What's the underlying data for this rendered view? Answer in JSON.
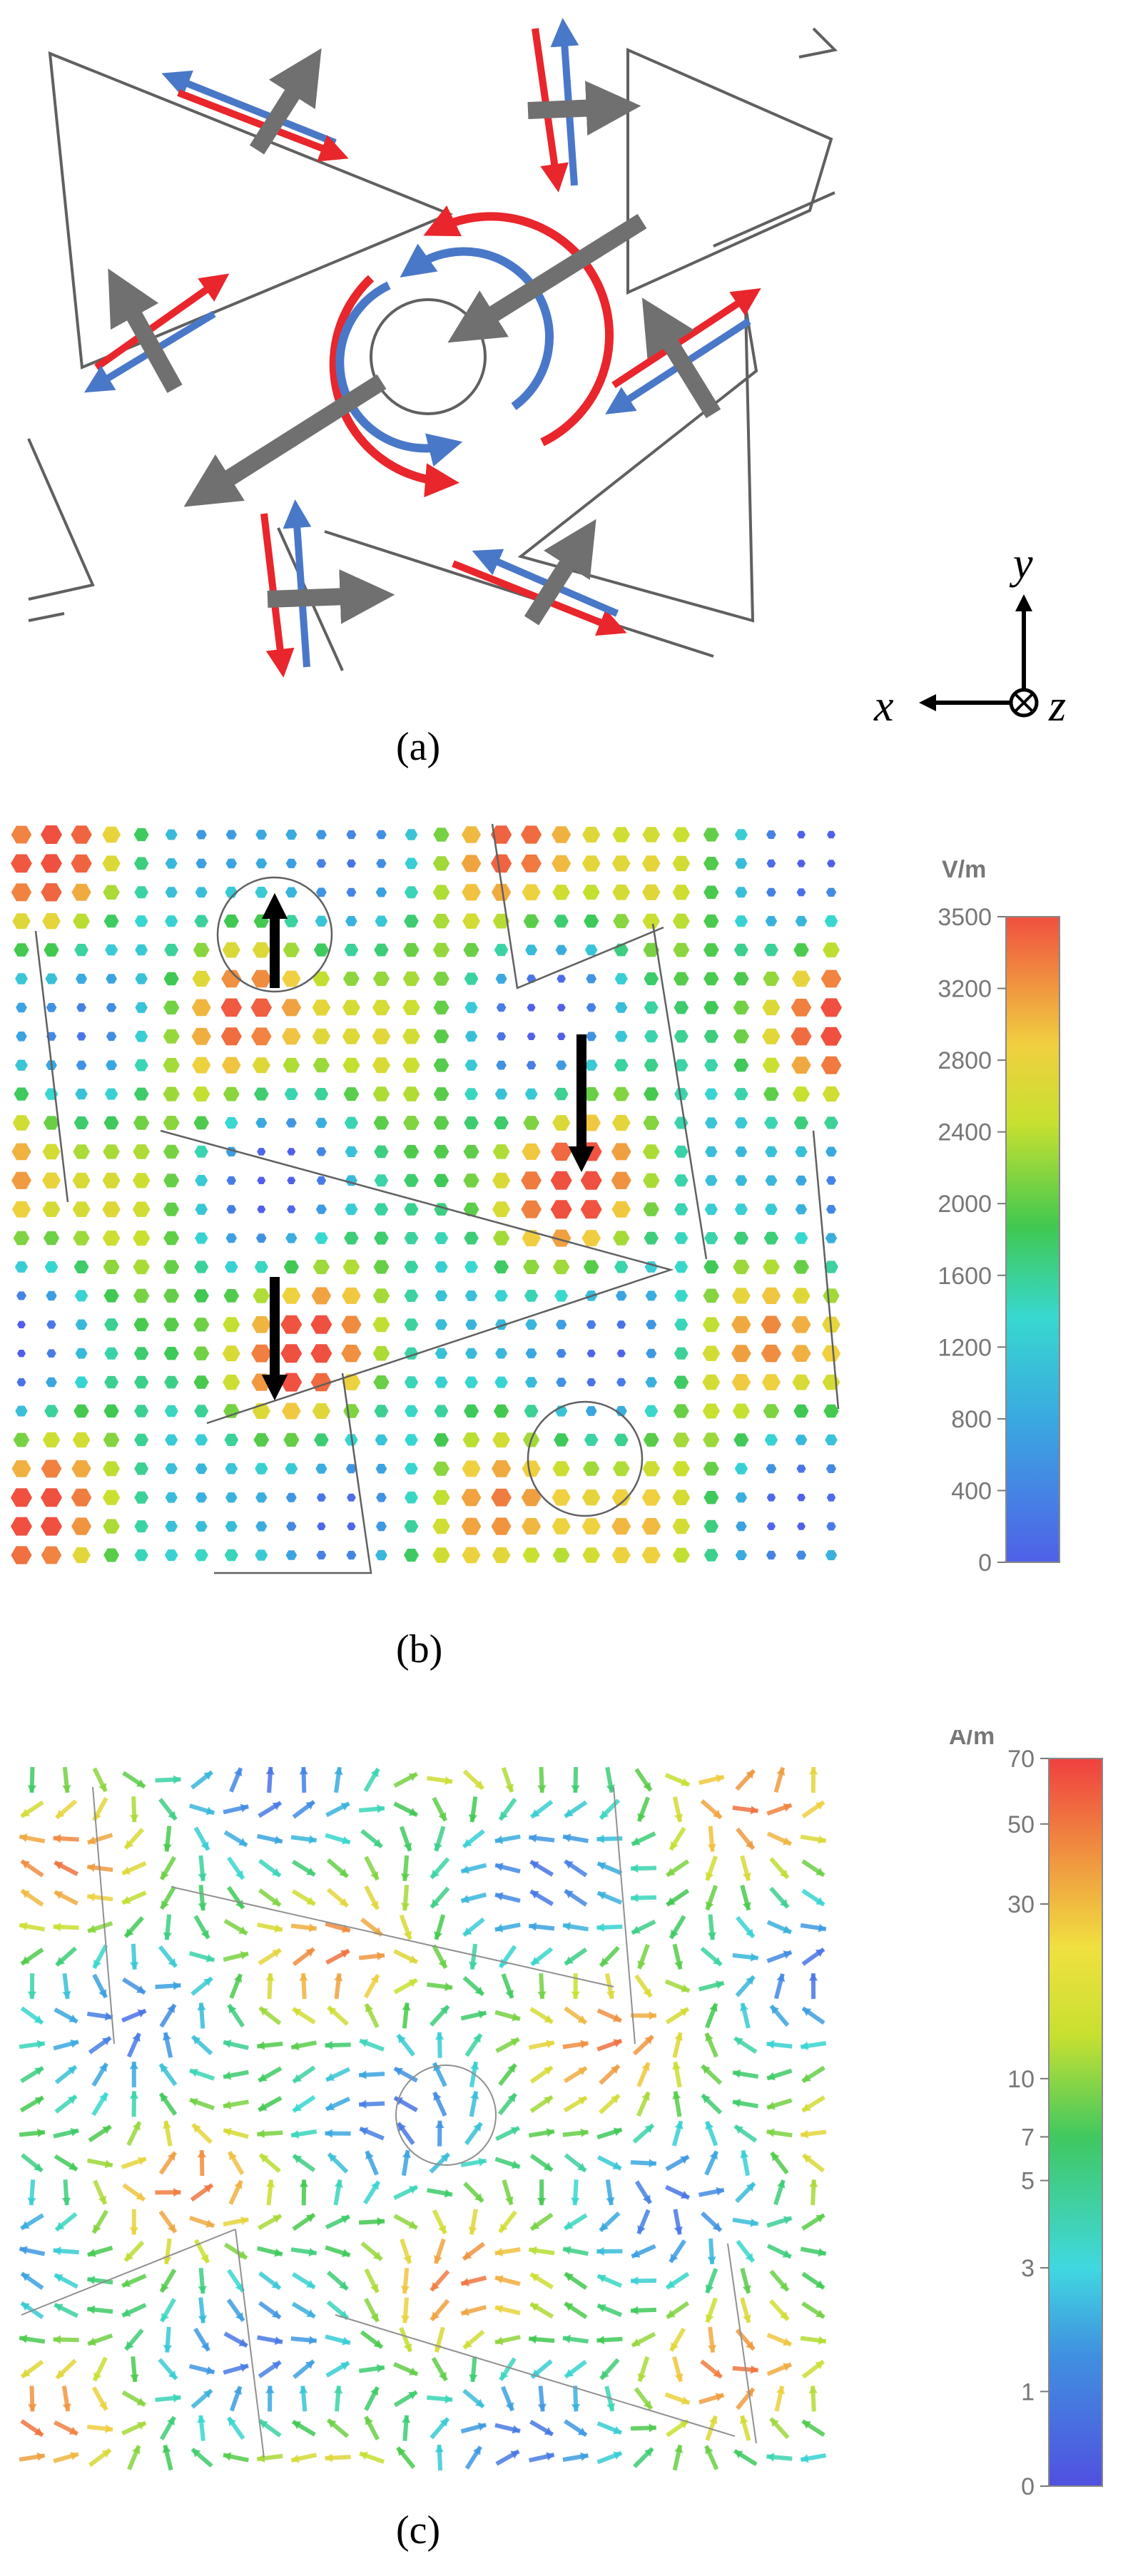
{
  "panels": [
    {
      "id": "a",
      "caption": "(a)"
    },
    {
      "id": "b",
      "caption": "(b)"
    },
    {
      "id": "c",
      "caption": "(c)"
    }
  ],
  "axes_triad": {
    "x": "x",
    "y": "y",
    "z": "z"
  },
  "colorbar_b": {
    "unit": "V/m",
    "scale": "linear",
    "ticks": [
      "3500",
      "3200",
      "2800",
      "2400",
      "2000",
      "1600",
      "1200",
      "800",
      "400",
      "0"
    ]
  },
  "colorbar_c": {
    "unit": "A/m",
    "scale": "log",
    "ticks": [
      "70",
      "50",
      "30",
      "10",
      "7",
      "5",
      "3",
      "1",
      "0"
    ]
  },
  "colors": {
    "red_arrow": "#e8262c",
    "blue_arrow": "#4a78c8",
    "gray_arrow": "#707070",
    "outline": "#606060"
  }
}
